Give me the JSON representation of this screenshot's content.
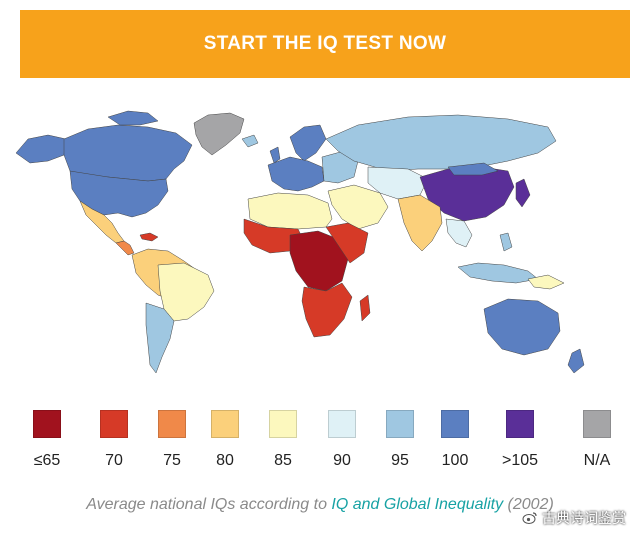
{
  "cta": {
    "label": "START THE IQ TEST NOW"
  },
  "legend": {
    "items": [
      {
        "label": "≤65",
        "color": "#a1121e"
      },
      {
        "label": "70",
        "color": "#d63a27"
      },
      {
        "label": "75",
        "color": "#f08949"
      },
      {
        "label": "80",
        "color": "#fbd07b"
      },
      {
        "label": "85",
        "color": "#fcf8be"
      },
      {
        "label": "90",
        "color": "#dff1f6"
      },
      {
        "label": "95",
        "color": "#9fc7e1"
      },
      {
        "label": "100",
        "color": "#5b7fc1"
      },
      {
        "label": ">105",
        "color": "#5a2f98"
      },
      {
        "label": "N/A",
        "color": "#a5a5a7"
      }
    ]
  },
  "caption": {
    "prefix": "Average national IQs according to ",
    "link": "IQ and Global Inequality",
    "suffix": " (2002)"
  },
  "watermark": {
    "text": "古典诗词鉴赏"
  }
}
